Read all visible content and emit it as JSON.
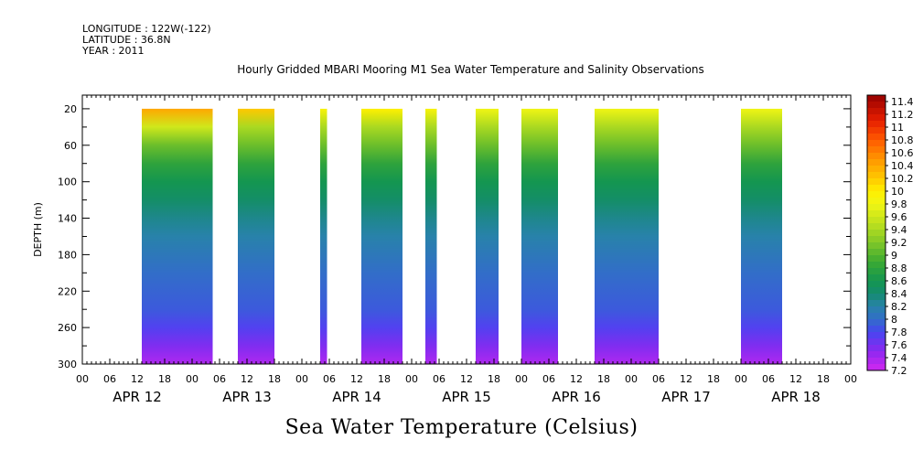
{
  "header": {
    "longitude": "LONGITUDE : 122W(-122)",
    "latitude": "LATITUDE : 36.8N",
    "year": "YEAR : 2011"
  },
  "chart_data": {
    "type": "heatmap",
    "title": "Hourly Gridded MBARI Mooring M1 Sea Water Temperature and Salinity Observations",
    "xlabel": "Sea Water Temperature (Celsius)",
    "ylabel": "DEPTH (m)",
    "x_unit": "hours since APR 12 00:00",
    "xlim": [
      0,
      168
    ],
    "ylim": [
      300,
      5
    ],
    "y_ticks": [
      20,
      60,
      100,
      140,
      180,
      220,
      260,
      300
    ],
    "x_tick_labels": [
      "00",
      "06",
      "12",
      "18",
      "00",
      "06",
      "12",
      "18",
      "00",
      "06",
      "12",
      "18",
      "00",
      "06",
      "12",
      "18",
      "00",
      "06",
      "12",
      "18",
      "00",
      "06",
      "12",
      "18",
      "00",
      "06",
      "12",
      "18",
      "00"
    ],
    "day_labels": [
      "APR 12",
      "APR 13",
      "APR 14",
      "APR 15",
      "APR 16",
      "APR 17",
      "APR 18"
    ],
    "colorbar": {
      "min": 7.2,
      "max": 11.5,
      "labels": [
        "11.4",
        "11.2",
        "11",
        "10.8",
        "10.6",
        "10.4",
        "10.2",
        "10",
        "9.8",
        "9.6",
        "9.4",
        "9.2",
        "9",
        "8.8",
        "8.6",
        "8.4",
        "8.2",
        "8",
        "7.8",
        "7.6",
        "7.4",
        "7.2"
      ]
    },
    "data_blocks": [
      {
        "start_hour": 13,
        "end_hour": 28.5,
        "top_temp": 10.4,
        "warm_cap_depth": 45
      },
      {
        "start_hour": 34,
        "end_hour": 42,
        "top_temp": 10.2,
        "warm_cap_depth": 40
      },
      {
        "start_hour": 52,
        "end_hour": 53.5,
        "top_temp": 9.9,
        "warm_cap_depth": 30
      },
      {
        "start_hour": 61,
        "end_hour": 70,
        "top_temp": 10.0,
        "warm_cap_depth": 35
      },
      {
        "start_hour": 75,
        "end_hour": 77.5,
        "top_temp": 9.9,
        "warm_cap_depth": 30
      },
      {
        "start_hour": 86,
        "end_hour": 91,
        "top_temp": 9.8,
        "warm_cap_depth": 30
      },
      {
        "start_hour": 96,
        "end_hour": 104,
        "top_temp": 9.6,
        "warm_cap_depth": 25
      },
      {
        "start_hour": 112,
        "end_hour": 126,
        "top_temp": 9.8,
        "warm_cap_depth": 30
      },
      {
        "start_hour": 144,
        "end_hour": 153,
        "top_temp": 9.8,
        "warm_cap_depth": 30
      }
    ],
    "temperature_profile": [
      {
        "depth": 20,
        "temp": 9.8
      },
      {
        "depth": 40,
        "temp": 9.4
      },
      {
        "depth": 60,
        "temp": 9.1
      },
      {
        "depth": 80,
        "temp": 8.8
      },
      {
        "depth": 100,
        "temp": 8.6
      },
      {
        "depth": 120,
        "temp": 8.45
      },
      {
        "depth": 140,
        "temp": 8.3
      },
      {
        "depth": 160,
        "temp": 8.2
      },
      {
        "depth": 180,
        "temp": 8.1
      },
      {
        "depth": 200,
        "temp": 8.0
      },
      {
        "depth": 220,
        "temp": 7.95
      },
      {
        "depth": 240,
        "temp": 7.9
      },
      {
        "depth": 260,
        "temp": 7.75
      },
      {
        "depth": 280,
        "temp": 7.55
      },
      {
        "depth": 300,
        "temp": 7.35
      }
    ]
  }
}
